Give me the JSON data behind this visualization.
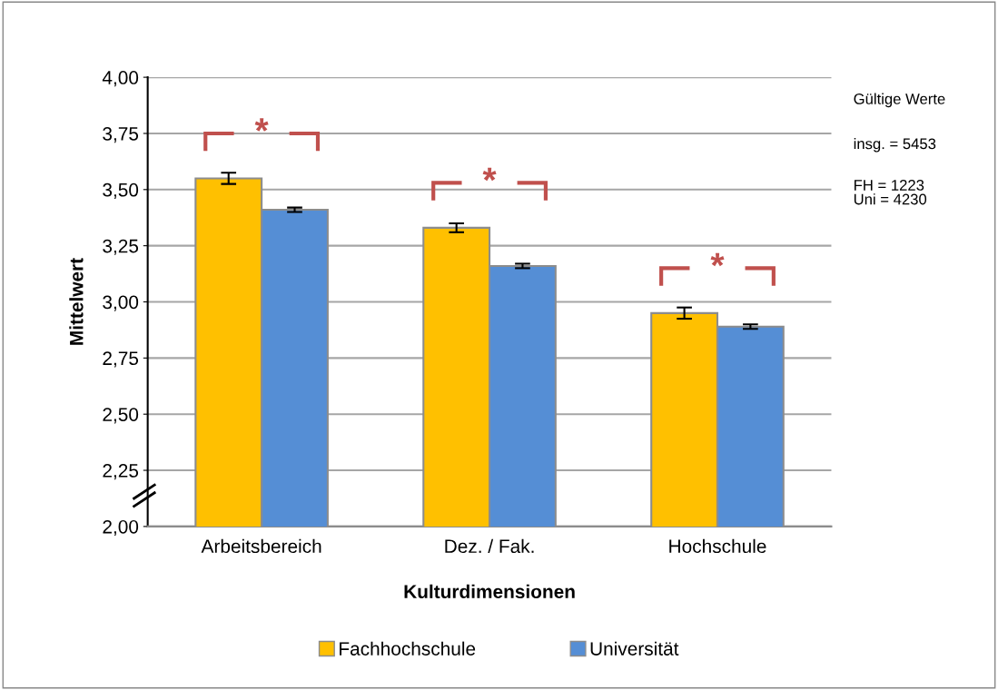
{
  "chart_data": {
    "type": "bar",
    "xlabel": "Kulturdimensionen",
    "ylabel": "Mittelwert",
    "categories": [
      "Arbeitsbereich",
      "Dez. / Fak.",
      "Hochschule"
    ],
    "series": [
      {
        "name": "Fachhochschule",
        "color": "#ffc000",
        "values": [
          3.55,
          3.33,
          2.95
        ],
        "errors": [
          0.025,
          0.02,
          0.025
        ]
      },
      {
        "name": "Universität",
        "color": "#558ed5",
        "values": [
          3.41,
          3.16,
          2.89
        ],
        "errors": [
          0.01,
          0.01,
          0.01
        ]
      }
    ],
    "ylim": [
      2.0,
      4.0
    ],
    "yticks": [
      {
        "value": 2.0,
        "label": "2,00"
      },
      {
        "value": 2.25,
        "label": "2,25"
      },
      {
        "value": 2.5,
        "label": "2,50"
      },
      {
        "value": 2.75,
        "label": "2,75"
      },
      {
        "value": 3.0,
        "label": "3,00"
      },
      {
        "value": 3.25,
        "label": "3,25"
      },
      {
        "value": 3.5,
        "label": "3,50"
      },
      {
        "value": 3.75,
        "label": "3,75"
      },
      {
        "value": 4.0,
        "label": "4,00"
      }
    ],
    "grid": "y",
    "legend": "bottom",
    "annotations": [
      "*",
      "*",
      "*",
      "Gültige Werte",
      "insg. = 5453",
      "FH = 1223\nUni = 4230"
    ]
  }
}
